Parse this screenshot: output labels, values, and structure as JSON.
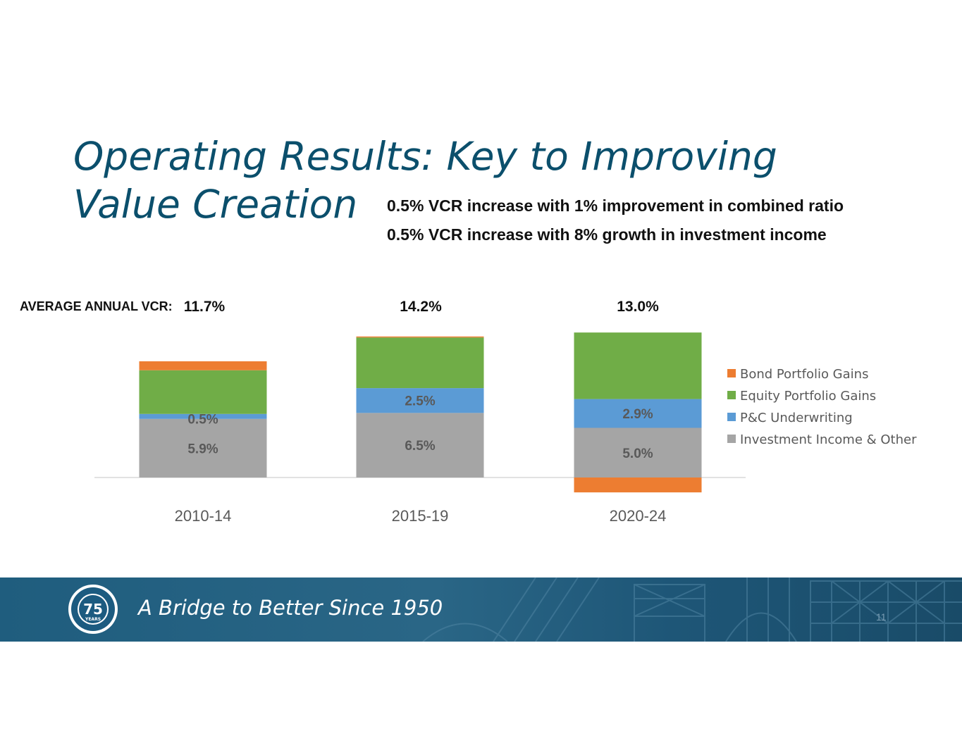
{
  "title": {
    "line1": "Operating Results: Key to Improving",
    "line2": "Value Creation"
  },
  "subtitle": {
    "line1": "0.5% VCR increase with 1% improvement in combined ratio",
    "line2": "0.5% VCR increase with 8% growth in investment income"
  },
  "average_label": "AVERAGE ANNUAL VCR:",
  "footer": {
    "tagline": "A Bridge to Better Since 1950",
    "page_number": "11",
    "logo_text": "75",
    "logo_sub": "YEARS"
  },
  "colors": {
    "bond": "#ed7d31",
    "equity": "#70ad47",
    "underwriting": "#5b9bd5",
    "investment": "#a5a5a5",
    "title": "#0b4f6c"
  },
  "chart_data": {
    "type": "bar",
    "stacked": true,
    "categories": [
      "2010-14",
      "2015-19",
      "2020-24"
    ],
    "totals": [
      "11.7%",
      "14.2%",
      "13.0%"
    ],
    "series": [
      {
        "name": "Investment Income & Other",
        "color": "#a5a5a5",
        "values": [
          5.9,
          6.5,
          5.0
        ],
        "labels": [
          "5.9%",
          "6.5%",
          "5.0%"
        ]
      },
      {
        "name": "P&C Underwriting",
        "color": "#5b9bd5",
        "values": [
          0.5,
          2.5,
          2.9
        ],
        "labels": [
          "0.5%",
          "2.5%",
          "2.9%"
        ]
      },
      {
        "name": "Equity Portfolio Gains",
        "color": "#70ad47",
        "values": [
          4.4,
          5.1,
          6.7
        ],
        "labels": [
          "",
          "",
          ""
        ]
      },
      {
        "name": "Bond Portfolio Gains",
        "color": "#ed7d31",
        "values": [
          0.9,
          0.1,
          -1.5
        ],
        "labels": [
          "",
          "",
          ""
        ]
      }
    ],
    "legend_order": [
      "Bond Portfolio Gains",
      "Equity Portfolio Gains",
      "P&C Underwriting",
      "Investment Income & Other"
    ],
    "legend_position": "right",
    "ylim": [
      -1.5,
      14.6
    ],
    "grid": false
  }
}
